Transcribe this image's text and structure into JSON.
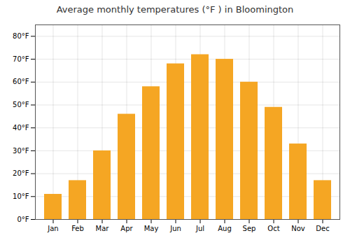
{
  "chart_data": {
    "type": "bar",
    "title": "Average monthly temperatures (°F ) in Bloomington",
    "categories": [
      "Jan",
      "Feb",
      "Mar",
      "Apr",
      "May",
      "Jun",
      "Jul",
      "Aug",
      "Sep",
      "Oct",
      "Nov",
      "Dec"
    ],
    "values": [
      11,
      17,
      30,
      46,
      58,
      68,
      72,
      70,
      60,
      49,
      33,
      17
    ],
    "color": "#F5A623",
    "ylim": [
      0,
      85
    ],
    "yticks": [
      {
        "value": 0,
        "label": "0°F"
      },
      {
        "value": 10,
        "label": "10°F"
      },
      {
        "value": 20,
        "label": "20°F"
      },
      {
        "value": 30,
        "label": "30°F"
      },
      {
        "value": 40,
        "label": "40°F"
      },
      {
        "value": 50,
        "label": "50°F"
      },
      {
        "value": 60,
        "label": "60°F"
      },
      {
        "value": 70,
        "label": "70°F"
      },
      {
        "value": 80,
        "label": "80°F"
      }
    ],
    "grid": true
  }
}
